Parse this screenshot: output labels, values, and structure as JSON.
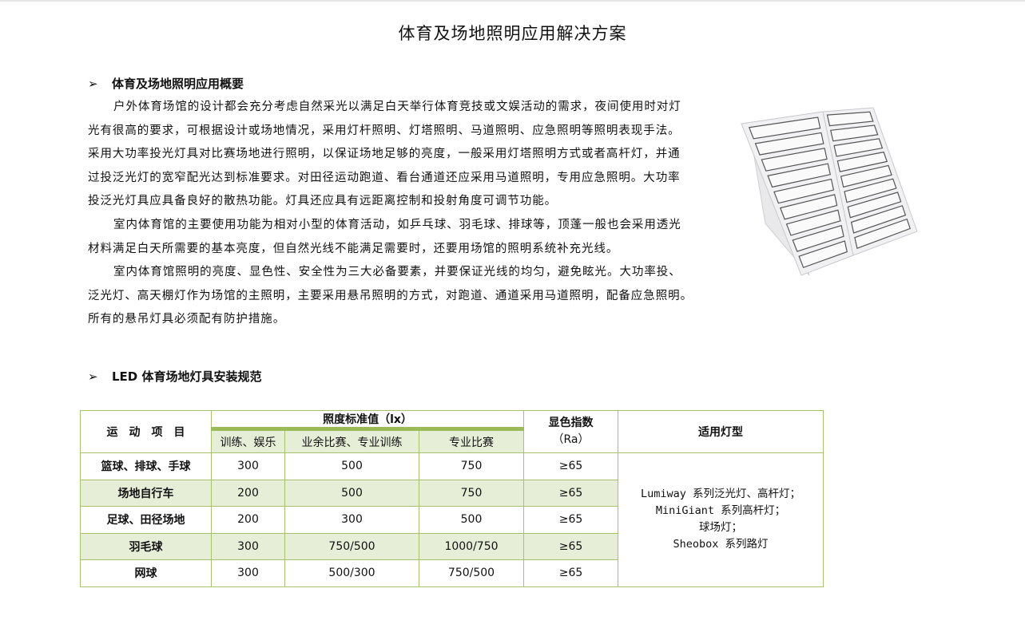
{
  "title": "体育及场地照明应用解决方案",
  "section1": {
    "heading": "体育及场地照明应用概要",
    "lines": [
      {
        "text": "户外体育场馆的设计都会充分考虑自然采光以满足白天举行体育竞技或文娱活动的需求，夜间使用时对灯",
        "indent": true
      },
      {
        "text": "光有很高的要求，可根据设计或场地情况，采用灯杆照明、灯塔照明、马道照明、应急照明等照明表现手法。",
        "indent": false
      },
      {
        "text": "采用大功率投光灯具对比赛场地进行照明，以保证场地足够的亮度，一般采用灯塔照明方式或者高杆灯，并通",
        "indent": false
      },
      {
        "text": "过投泛光灯的宽窄配光达到标准要求。对田径运动跑道、看台通道还应采用马道照明，专用应急照明。大功率",
        "indent": false
      },
      {
        "text": "投泛光灯具应具备良好的散热功能。灯具还应具有远距离控制和投射角度可调节功能。",
        "indent": false
      },
      {
        "text": "室内体育馆的主要使用功能为相对小型的体育活动，如乒乓球、羽毛球、排球等，顶蓬一般也会采用透光",
        "indent": true
      },
      {
        "text": "材料满足白天所需要的基本亮度，但自然光线不能满足需要时，还要用场馆的照明系统补充光线。",
        "indent": false
      },
      {
        "text": "室内体育馆照明的亮度、显色性、安全性为三大必备要素，并要保证光线的均匀，避免眩光。大功率投、",
        "indent": true
      },
      {
        "text": "泛光灯、高天棚灯作为场馆的主照明，主要采用悬吊照明的方式，对跑道、通道采用马道照明，配备应急照明。",
        "indent": false
      },
      {
        "text": "所有的悬吊灯具必须配有防护措施。",
        "indent": false
      }
    ]
  },
  "section2": {
    "heading": "LED 体育场地灯具安装规范"
  },
  "table": {
    "h_sport": "运　动　项　目",
    "h_lux": "照度标准值（lx）",
    "h_lux_sub": [
      "训练、娱乐",
      "业余比赛、专业训练",
      "专业比赛"
    ],
    "h_ra": "显色指数",
    "h_ra2": "（Ra）",
    "h_lamp": "适用灯型",
    "rows": [
      {
        "sport": "篮球、排球、手球",
        "v": [
          "300",
          "500",
          "750"
        ],
        "ra": "≥65"
      },
      {
        "sport": "场地自行车",
        "v": [
          "200",
          "500",
          "750"
        ],
        "ra": "≥65"
      },
      {
        "sport": "足球、田径场地",
        "v": [
          "200",
          "300",
          "500"
        ],
        "ra": "≥65"
      },
      {
        "sport": "羽毛球",
        "v": [
          "300",
          "750/500",
          "1000/750"
        ],
        "ra": "≥65"
      },
      {
        "sport": "网球",
        "v": [
          "300",
          "500/300",
          "750/500"
        ],
        "ra": "≥65"
      }
    ],
    "lamps": [
      "Lumiway 系列泛光灯、高杆灯；",
      "MiniGiant 系列高杆灯；",
      "球场灯；",
      "Sheobox 系列路灯"
    ]
  },
  "colors": {
    "border": "#a6c26a",
    "header_rule": "#9bbb59",
    "row_alt": "#e6eed8"
  }
}
